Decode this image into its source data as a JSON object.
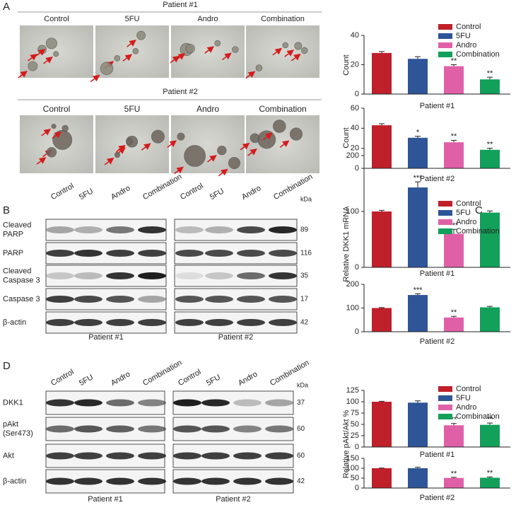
{
  "panels": {
    "A": {
      "label": "A",
      "patient1": "Patient #1",
      "patient2": "Patient #2",
      "columns": [
        "Control",
        "5FU",
        "Andro",
        "Combination"
      ]
    },
    "B": {
      "label": "B",
      "columns": [
        "Control",
        "5FU",
        "Andro",
        "Combination"
      ],
      "rows": [
        [
          "Cleaved",
          "PARP"
        ],
        [
          "PARP"
        ],
        [
          "Cleaved",
          "Caspase 3"
        ],
        [
          "Caspase 3"
        ],
        [
          "β-actin"
        ]
      ],
      "unit": "kDa",
      "weights": [
        89,
        116,
        35,
        17,
        42
      ],
      "footers": [
        "Patient #1",
        "Patient #2"
      ]
    },
    "C": {
      "label": "C"
    },
    "D": {
      "label": "D",
      "columns": [
        "Control",
        "5FU",
        "Andro",
        "Combination"
      ],
      "rows": [
        [
          "DKK1"
        ],
        [
          "pAkt",
          "(Ser473)"
        ],
        [
          "Akt"
        ],
        [
          "β-actin"
        ]
      ],
      "unit": "kDa",
      "weights": [
        37,
        60,
        60,
        42
      ],
      "footers": [
        "Patient #1",
        "Patient #2"
      ]
    }
  },
  "chart_data": [
    {
      "type": "bar",
      "categories": [
        "Control",
        "5FU",
        "Andro",
        "Combination"
      ],
      "values": [
        28,
        24,
        19,
        10
      ],
      "errors": [
        1,
        1.5,
        1,
        1.5
      ],
      "colors": [
        "#c0202a",
        "#2e5597",
        "#e060a8",
        "#12a05a"
      ],
      "ylim": [
        0,
        40
      ],
      "yticks": [
        0,
        20,
        40
      ],
      "x_label": "Patient #1",
      "y_label": "Count",
      "annotations": [
        null,
        null,
        "**",
        "**"
      ]
    },
    {
      "type": "bar",
      "values": [
        43,
        30.5,
        26,
        18.5
      ],
      "errors": [
        1.5,
        1.5,
        2,
        1.5
      ],
      "colors": [
        "#c0202a",
        "#2e5597",
        "#e060a8",
        "#12a05a"
      ],
      "ylim": [
        0,
        60
      ],
      "yticks": [
        0,
        20,
        40,
        60
      ],
      "x_label": "Patient #2",
      "y_label": "Count",
      "annotations": [
        null,
        "*",
        "**",
        "**"
      ]
    },
    {
      "type": "bar",
      "categories": [
        "Control",
        "5FU",
        "Andro",
        "Combination"
      ],
      "values": [
        100,
        143,
        60,
        98
      ],
      "errors": [
        2,
        10,
        8,
        3
      ],
      "colors": [
        "#c0202a",
        "#2e5597",
        "#e060a8",
        "#12a05a"
      ],
      "ylim": [
        0,
        200
      ],
      "yticks": [
        0,
        100,
        200
      ],
      "x_label": "Patient #1",
      "y_label": "Relative DKK1 mRNA",
      "annotations": [
        null,
        "***",
        "***",
        null
      ]
    },
    {
      "type": "bar",
      "values": [
        100,
        155,
        60,
        103
      ],
      "errors": [
        2,
        5,
        5,
        4
      ],
      "colors": [
        "#c0202a",
        "#2e5597",
        "#e060a8",
        "#12a05a"
      ],
      "ylim": [
        0,
        200
      ],
      "yticks": [
        0,
        100,
        200
      ],
      "x_label": "Patient #2",
      "annotations": [
        null,
        "***",
        "**",
        null
      ]
    },
    {
      "type": "bar",
      "categories": [
        "Control",
        "5FU",
        "Andro",
        "Combination"
      ],
      "values": [
        100,
        98,
        48,
        49
      ],
      "errors": [
        1,
        4,
        4,
        4
      ],
      "colors": [
        "#c0202a",
        "#2e5597",
        "#e060a8",
        "#12a05a"
      ],
      "ylim": [
        0,
        125
      ],
      "yticks": [
        0,
        25,
        50,
        75,
        100,
        125
      ],
      "x_label": "Patient #1",
      "y_label": "Relative pAkt/Akt %",
      "annotations": [
        null,
        null,
        "**",
        "**"
      ]
    },
    {
      "type": "bar",
      "values": [
        100,
        100,
        51,
        52
      ],
      "errors": [
        1,
        5,
        3,
        4
      ],
      "colors": [
        "#c0202a",
        "#2e5597",
        "#e060a8",
        "#12a05a"
      ],
      "ylim": [
        0,
        150
      ],
      "yticks": [
        0,
        50,
        100,
        150
      ],
      "x_label": "Patient #2",
      "annotations": [
        null,
        null,
        "**",
        "**"
      ]
    }
  ]
}
